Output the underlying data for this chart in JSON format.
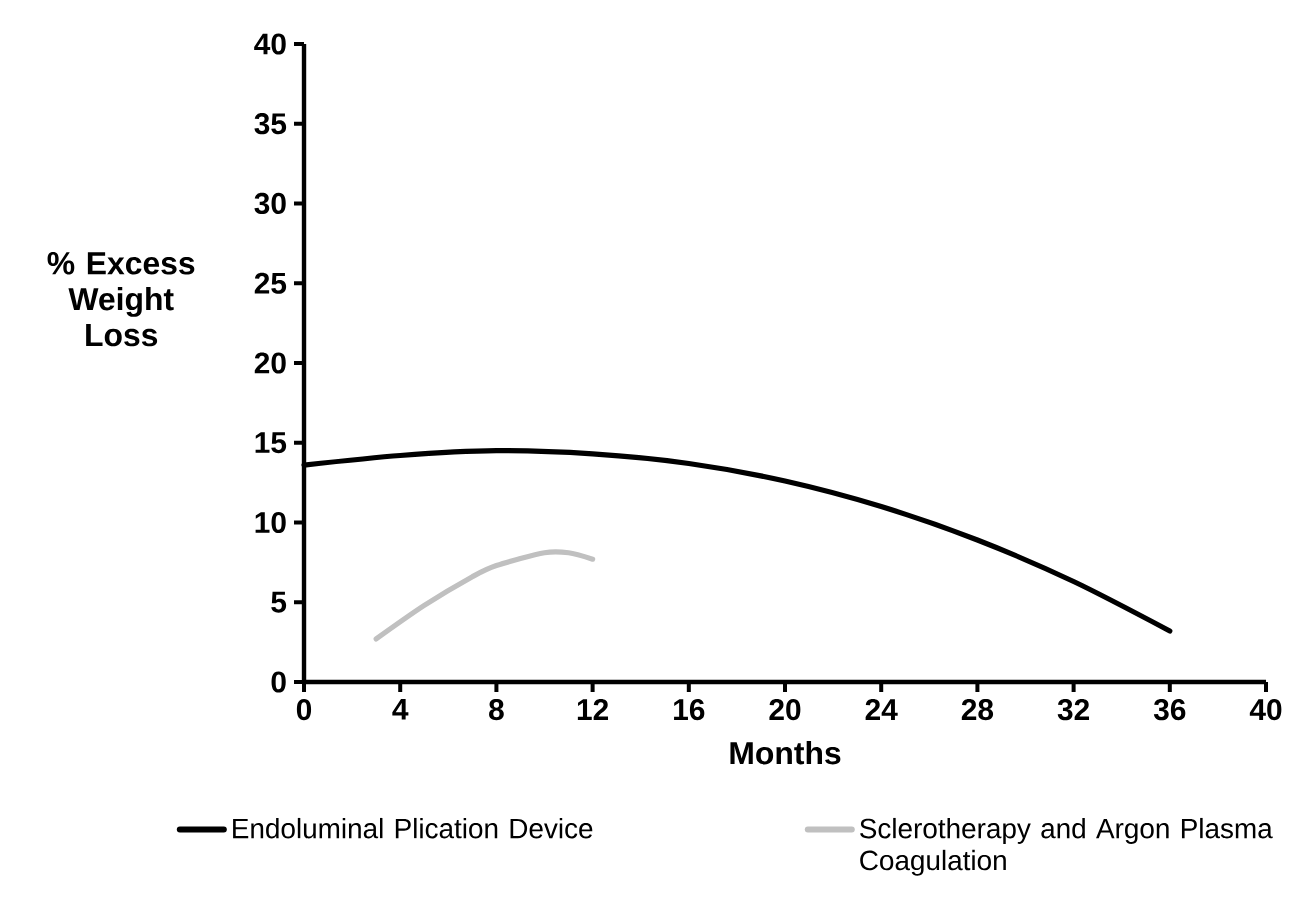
{
  "chart_data": {
    "type": "line",
    "xlabel": "Months",
    "ylabel": "% Excess Weight Loss",
    "xlim": [
      0,
      40
    ],
    "ylim": [
      0,
      40
    ],
    "xticks": [
      0,
      4,
      8,
      12,
      16,
      20,
      24,
      28,
      32,
      36,
      40
    ],
    "yticks": [
      0,
      5,
      10,
      15,
      20,
      25,
      30,
      35,
      40
    ],
    "legend": "bottom",
    "marker": "none",
    "line_style": "solid",
    "series": [
      {
        "name": "Endoluminal Plication Device",
        "color": "#000000",
        "x": [
          0,
          4,
          8,
          12,
          16,
          20,
          24,
          28,
          32,
          36
        ],
        "values": [
          13.6,
          14.2,
          14.5,
          14.3,
          13.7,
          12.6,
          11.0,
          8.9,
          6.3,
          3.2
        ]
      },
      {
        "name": "Sclerotherapy and Argon Plasma Coagulation",
        "color": "#c0c0c0",
        "x": [
          3,
          5,
          7,
          8,
          10,
          11,
          12
        ],
        "values": [
          2.7,
          4.8,
          6.6,
          7.3,
          8.1,
          8.1,
          7.7
        ]
      }
    ]
  }
}
